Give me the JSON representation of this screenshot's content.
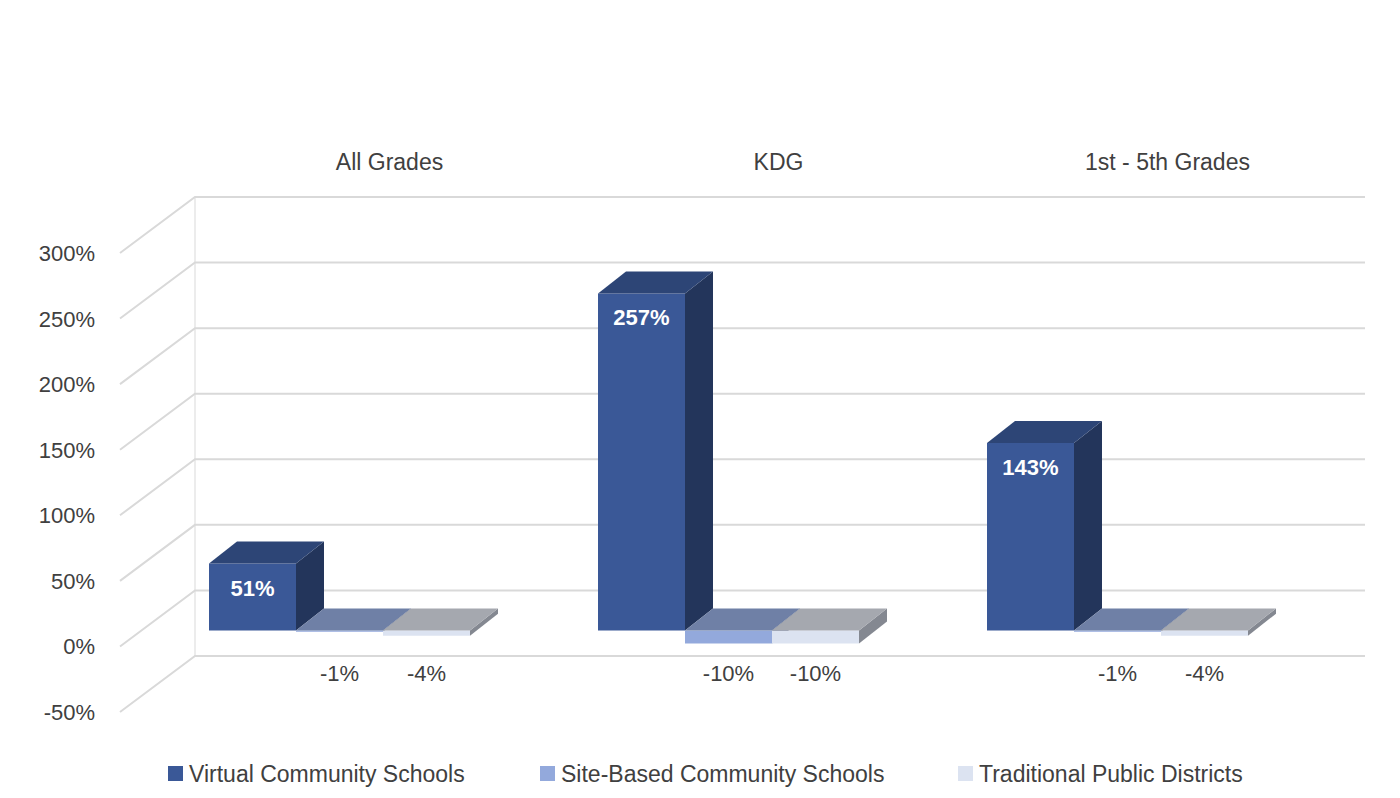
{
  "chart_data": {
    "type": "bar",
    "categories": [
      "All Grades",
      "KDG",
      "1st - 5th Grades"
    ],
    "series": [
      {
        "name": "Virtual Community Schools",
        "color": "#3a5897",
        "values": [
          51,
          257,
          143
        ],
        "value_labels": [
          "51%",
          "257%",
          "143%"
        ]
      },
      {
        "name": "Site-Based Community Schools",
        "color": "#93a9dc",
        "values": [
          -1,
          -10,
          -1
        ],
        "value_labels": [
          "-1%",
          "-10%",
          "-1%"
        ]
      },
      {
        "name": "Traditional Public Districts",
        "color": "#dce3f1",
        "values": [
          -4,
          -10,
          -4
        ],
        "value_labels": [
          "-4%",
          "-10%",
          "-4%"
        ]
      }
    ],
    "ylim": [
      -50,
      300
    ],
    "yticks": [
      {
        "value": -50,
        "label": "-50%"
      },
      {
        "value": 0,
        "label": "0%"
      },
      {
        "value": 50,
        "label": "50%"
      },
      {
        "value": 100,
        "label": "100%"
      },
      {
        "value": 150,
        "label": "150%"
      },
      {
        "value": 200,
        "label": "200%"
      },
      {
        "value": 250,
        "label": "250%"
      },
      {
        "value": 300,
        "label": "300%"
      }
    ],
    "grid": true,
    "data_labels": true,
    "legend": "bottom"
  }
}
